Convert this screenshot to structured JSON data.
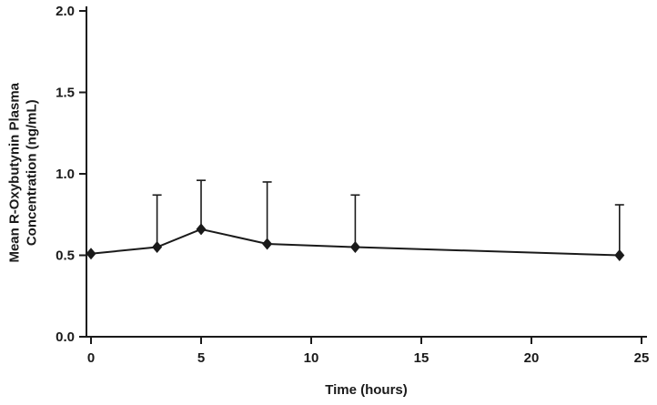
{
  "figure": {
    "background": "#ffffff",
    "foreground": "#1a1a1a"
  },
  "chart_data": {
    "type": "line",
    "title": "",
    "xlabel": "Time (hours)",
    "ylabel": "Mean R-Oxybutynin Plasma\nConcentration (ng/mL)",
    "xlim": [
      0,
      25
    ],
    "ylim": [
      0.0,
      2.0
    ],
    "xticks": [
      0,
      5,
      10,
      15,
      20,
      25
    ],
    "xtick_labels": [
      "0",
      "5",
      "10",
      "15",
      "20",
      "25"
    ],
    "yticks": [
      0.0,
      0.5,
      1.0,
      1.5,
      2.0
    ],
    "ytick_labels": [
      "0.0",
      "0.5",
      "1.0",
      "1.5",
      "2.0"
    ],
    "grid": false,
    "legend": "none",
    "marker": "diamond",
    "line_color": "#1a1a1a",
    "error_bars": "upper-only",
    "series": [
      {
        "name": "Mean R-Oxybutynin Plasma Concentration",
        "points": [
          {
            "x": 0,
            "y": 0.51,
            "err_upper": null
          },
          {
            "x": 3,
            "y": 0.55,
            "err_upper": 0.87
          },
          {
            "x": 5,
            "y": 0.66,
            "err_upper": 0.96
          },
          {
            "x": 8,
            "y": 0.57,
            "err_upper": 0.95
          },
          {
            "x": 12,
            "y": 0.55,
            "err_upper": 0.87
          },
          {
            "x": 24,
            "y": 0.5,
            "err_upper": 0.81
          }
        ]
      }
    ]
  }
}
